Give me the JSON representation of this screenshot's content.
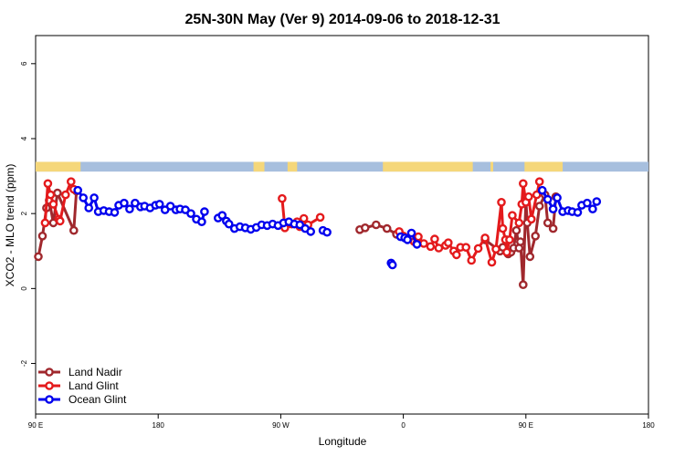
{
  "chart_data": {
    "type": "line",
    "title": "25N-30N May (Ver 9)   2014-09-06 to 2018-12-31",
    "xlabel": "Longitude",
    "ylabel": "XCO2 - MLO trend (ppm)",
    "xlim": [
      90,
      540
    ],
    "ylim": [
      -3.35,
      6.75
    ],
    "x_ticks": [
      {
        "value": 90,
        "label": "90 E"
      },
      {
        "value": 180,
        "label": "180"
      },
      {
        "value": 270,
        "label": "90 W"
      },
      {
        "value": 360,
        "label": "0"
      },
      {
        "value": 450,
        "label": "90 E"
      },
      {
        "value": 540,
        "label": "180"
      }
    ],
    "y_ticks": [
      {
        "value": -2,
        "label": "-2"
      },
      {
        "value": 0,
        "label": "0"
      },
      {
        "value": 2,
        "label": "2"
      },
      {
        "value": 4,
        "label": "4"
      },
      {
        "value": 6,
        "label": "6"
      }
    ],
    "grid": false,
    "legend": "bottom-left",
    "land_mask_strip": {
      "y_range": [
        3.12,
        3.38
      ],
      "ocean_color": "#a7bfde",
      "land_color": "#f5d77a",
      "land_spans": [
        [
          90,
          123
        ],
        [
          250,
          258
        ],
        [
          275,
          282
        ],
        [
          345,
          411
        ],
        [
          424,
          426
        ],
        [
          449,
          477
        ]
      ]
    },
    "series": [
      {
        "name": "Land Nadir",
        "color": "#a0282d",
        "segments": [
          [
            [
              92,
              0.85
            ],
            [
              95,
              1.4
            ],
            [
              98,
              2.15
            ],
            [
              100,
              2.35
            ],
            [
              103,
              1.75
            ],
            [
              106,
              2.55
            ],
            [
              118,
              1.55
            ],
            [
              120,
              2.6
            ]
          ],
          [
            [
              328,
              1.57
            ],
            [
              332,
              1.62
            ],
            [
              340,
              1.7
            ],
            [
              348,
              1.6
            ],
            [
              355,
              1.45
            ]
          ],
          [
            [
              420,
              1.3
            ],
            [
              431,
              1.0
            ],
            [
              433,
              1.1
            ],
            [
              436,
              1.3
            ],
            [
              437,
              0.92
            ],
            [
              439,
              0.97
            ],
            [
              441,
              1.08
            ],
            [
              443,
              1.55
            ],
            [
              445,
              1.08
            ],
            [
              446,
              1.25
            ],
            [
              448,
              0.1
            ],
            [
              450,
              2.35
            ],
            [
              451,
              1.75
            ],
            [
              453,
              0.85
            ],
            [
              457,
              1.4
            ],
            [
              460,
              2.2
            ],
            [
              464,
              2.5
            ],
            [
              466,
              1.75
            ],
            [
              470,
              1.6
            ],
            [
              472,
              2.45
            ]
          ]
        ]
      },
      {
        "name": "Land Glint",
        "color": "#e41a1c",
        "segments": [
          [
            [
              97,
              1.75
            ],
            [
              99,
              2.8
            ],
            [
              101,
              2.5
            ],
            [
              103,
              2.25
            ],
            [
              107,
              1.85
            ],
            [
              108,
              1.8
            ],
            [
              112,
              2.5
            ],
            [
              116,
              2.85
            ],
            [
              118,
              2.65
            ]
          ],
          [
            [
              271,
              2.4
            ],
            [
              273,
              1.62
            ],
            [
              278,
              1.72
            ],
            [
              282,
              1.78
            ],
            [
              284,
              1.65
            ],
            [
              287,
              1.87
            ],
            [
              290,
              1.7
            ],
            [
              299,
              1.9
            ]
          ],
          [
            [
              357,
              1.52
            ],
            [
              360,
              1.4
            ],
            [
              363,
              1.32
            ],
            [
              368,
              1.25
            ],
            [
              370,
              1.22
            ],
            [
              371,
              1.38
            ],
            [
              375,
              1.2
            ],
            [
              380,
              1.12
            ],
            [
              383,
              1.32
            ],
            [
              386,
              1.08
            ],
            [
              391,
              1.15
            ],
            [
              393,
              1.22
            ],
            [
              397,
              1.0
            ],
            [
              399,
              0.9
            ],
            [
              402,
              1.1
            ],
            [
              406,
              1.1
            ],
            [
              410,
              0.75
            ],
            [
              415,
              1.07
            ],
            [
              420,
              1.35
            ],
            [
              425,
              0.7
            ],
            [
              428,
              1.05
            ],
            [
              432,
              2.3
            ],
            [
              433,
              1.6
            ],
            [
              435,
              1.3
            ],
            [
              436,
              0.97
            ],
            [
              438,
              1.3
            ],
            [
              440,
              1.95
            ],
            [
              445,
              1.75
            ],
            [
              447,
              2.25
            ],
            [
              448,
              2.8
            ],
            [
              450,
              2.3
            ],
            [
              452,
              2.45
            ],
            [
              454,
              1.85
            ],
            [
              458,
              2.5
            ],
            [
              460,
              2.85
            ]
          ]
        ]
      },
      {
        "name": "Ocean Glint",
        "color": "#0000ee",
        "segments": [
          [
            [
              121,
              2.62
            ],
            [
              125,
              2.42
            ],
            [
              129,
              2.15
            ],
            [
              133,
              2.42
            ],
            [
              136,
              2.05
            ],
            [
              140,
              2.08
            ],
            [
              144,
              2.05
            ],
            [
              148,
              2.03
            ],
            [
              151,
              2.22
            ],
            [
              155,
              2.28
            ],
            [
              159,
              2.12
            ],
            [
              163,
              2.28
            ],
            [
              167,
              2.18
            ],
            [
              170,
              2.2
            ],
            [
              174,
              2.15
            ],
            [
              178,
              2.22
            ],
            [
              181,
              2.25
            ],
            [
              185,
              2.1
            ],
            [
              189,
              2.2
            ],
            [
              193,
              2.1
            ],
            [
              196,
              2.12
            ],
            [
              200,
              2.1
            ],
            [
              204,
              2.0
            ],
            [
              208,
              1.85
            ],
            [
              212,
              1.78
            ],
            [
              214,
              2.05
            ]
          ],
          [
            [
              224,
              1.88
            ],
            [
              227,
              1.95
            ],
            [
              230,
              1.8
            ],
            [
              232,
              1.72
            ],
            [
              236,
              1.6
            ],
            [
              240,
              1.65
            ],
            [
              244,
              1.62
            ],
            [
              248,
              1.58
            ],
            [
              252,
              1.63
            ],
            [
              256,
              1.7
            ],
            [
              260,
              1.68
            ],
            [
              264,
              1.72
            ],
            [
              268,
              1.68
            ],
            [
              272,
              1.75
            ],
            [
              276,
              1.78
            ],
            [
              280,
              1.72
            ],
            [
              284,
              1.7
            ],
            [
              288,
              1.6
            ],
            [
              292,
              1.52
            ]
          ],
          [
            [
              301,
              1.55
            ],
            [
              304,
              1.5
            ]
          ],
          [
            [
              351,
              0.68
            ],
            [
              352,
              0.63
            ]
          ],
          [
            [
              358,
              1.38
            ],
            [
              361,
              1.35
            ],
            [
              363,
              1.3
            ],
            [
              366,
              1.48
            ],
            [
              370,
              1.18
            ]
          ],
          [
            [
              462,
              2.62
            ],
            [
              466,
              2.38
            ],
            [
              470,
              2.12
            ],
            [
              473,
              2.42
            ],
            [
              477,
              2.05
            ],
            [
              481,
              2.08
            ],
            [
              484,
              2.05
            ],
            [
              488,
              2.03
            ],
            [
              491,
              2.22
            ],
            [
              495,
              2.28
            ],
            [
              499,
              2.12
            ],
            [
              502,
              2.32
            ]
          ]
        ]
      }
    ]
  }
}
